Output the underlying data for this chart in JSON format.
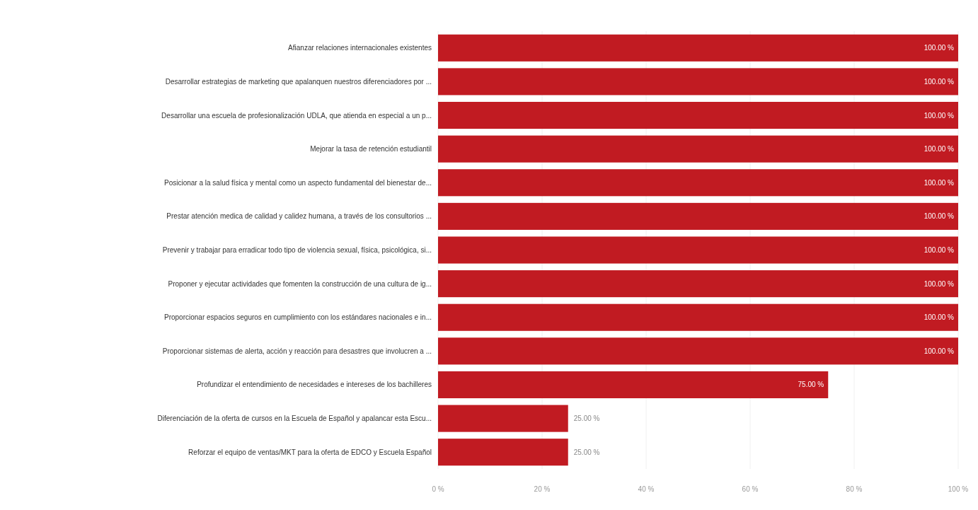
{
  "chart_data": {
    "type": "bar",
    "orientation": "horizontal",
    "categories": [
      "Afianzar relaciones internacionales existentes",
      "Desarrollar estrategias de marketing que apalanquen nuestros diferenciadores por ...",
      "Desarrollar una escuela de profesionalización UDLA, que atienda en especial a un p...",
      "Mejorar la tasa de retención estudiantil",
      "Posicionar a la salud física y mental como un aspecto fundamental del bienestar de...",
      "Prestar atención medica de calidad y calidez humana, a través de los consultorios ...",
      "Prevenir y trabajar para erradicar todo tipo de violencia sexual, física, psicológica, si...",
      "Proponer y ejecutar actividades que fomenten la construcción de una cultura de ig...",
      "Proporcionar espacios seguros en cumplimiento con los estándares nacionales e in...",
      "Proporcionar sistemas de alerta, acción y reacción para desastres que involucren a ...",
      "Profundizar el entendimiento de necesidades e intereses de los bachilleres",
      "Diferenciación de la oferta de cursos en la Escuela de Español y apalancar esta Escu...",
      "Reforzar el equipo de ventas/MKT para la oferta de EDCO y Escuela Español"
    ],
    "values": [
      100,
      100,
      100,
      100,
      100,
      100,
      100,
      100,
      100,
      100,
      75,
      25,
      25
    ],
    "value_labels": [
      "100.00 %",
      "100.00 %",
      "100.00 %",
      "100.00 %",
      "100.00 %",
      "100.00 %",
      "100.00 %",
      "100.00 %",
      "100.00 %",
      "100.00 %",
      "75.00 %",
      "25.00 %",
      "25.00 %"
    ],
    "color": "#c11b22",
    "xlim": [
      0,
      100
    ],
    "xticks": [
      {
        "value": 0,
        "label": "0 %"
      },
      {
        "value": 20,
        "label": "20 %"
      },
      {
        "value": 40,
        "label": "40 %"
      },
      {
        "value": 60,
        "label": "60 %"
      },
      {
        "value": 80,
        "label": "80 %"
      },
      {
        "value": 100,
        "label": "100 %"
      }
    ],
    "grid": "x"
  }
}
